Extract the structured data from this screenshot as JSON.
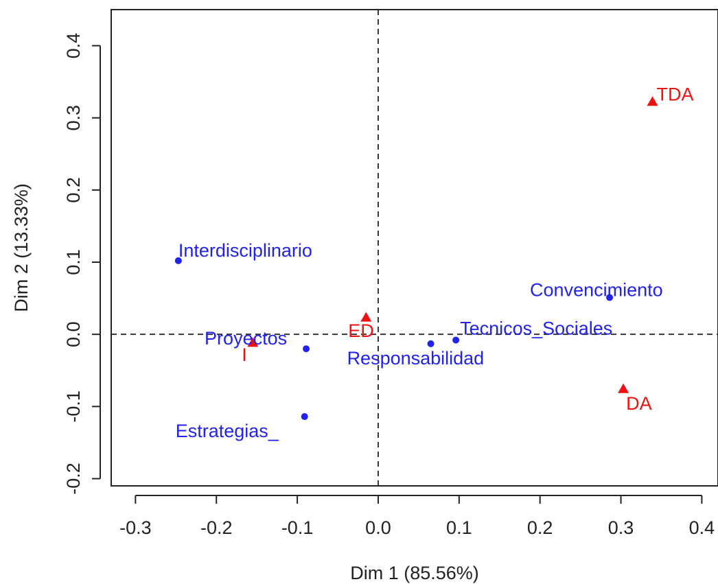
{
  "chart_data": {
    "type": "scatter",
    "xlabel": "Dim 1 (85.56%)",
    "ylabel": "Dim 2 (13.33%)",
    "xlim": [
      -0.33,
      0.42
    ],
    "ylim": [
      -0.21,
      0.45
    ],
    "xticks": [
      -0.3,
      -0.2,
      -0.1,
      0.0,
      0.1,
      0.2,
      0.3,
      0.4
    ],
    "xtick_labels": [
      "-0.3",
      "-0.2",
      "-0.1",
      "0.0",
      "0.1",
      "0.2",
      "0.3",
      "0.4"
    ],
    "yticks": [
      -0.2,
      -0.1,
      0.0,
      0.1,
      0.2,
      0.3,
      0.4
    ],
    "ytick_labels": [
      "-0.2",
      "-0.1",
      "0.0",
      "0.1",
      "0.2",
      "0.3",
      "0.4"
    ],
    "reference_lines": {
      "x": 0,
      "y": 0,
      "style": "dashed"
    },
    "grid": false,
    "series": [
      {
        "marker": "circle",
        "color": "#2222ee",
        "points": [
          {
            "label": "Interdisciplinario",
            "x": -0.247,
            "y": 0.102
          },
          {
            "label": "Convencimiento",
            "x": 0.286,
            "y": 0.051
          },
          {
            "label": "Tecnicos_Sociales",
            "x": 0.096,
            "y": -0.008
          },
          {
            "label": "Responsabilidad",
            "x": 0.065,
            "y": -0.013
          },
          {
            "label": "Proyectos",
            "x": -0.089,
            "y": -0.02
          },
          {
            "label": "Estrategias_",
            "x": -0.091,
            "y": -0.114
          }
        ]
      },
      {
        "marker": "triangle",
        "color": "#ee1111",
        "points": [
          {
            "label": "TDA",
            "x": 0.339,
            "y": 0.322
          },
          {
            "label": "ED",
            "x": -0.015,
            "y": 0.023
          },
          {
            "label": "I",
            "x": -0.155,
            "y": -0.012
          },
          {
            "label": "DA",
            "x": 0.303,
            "y": -0.076
          }
        ]
      }
    ]
  }
}
